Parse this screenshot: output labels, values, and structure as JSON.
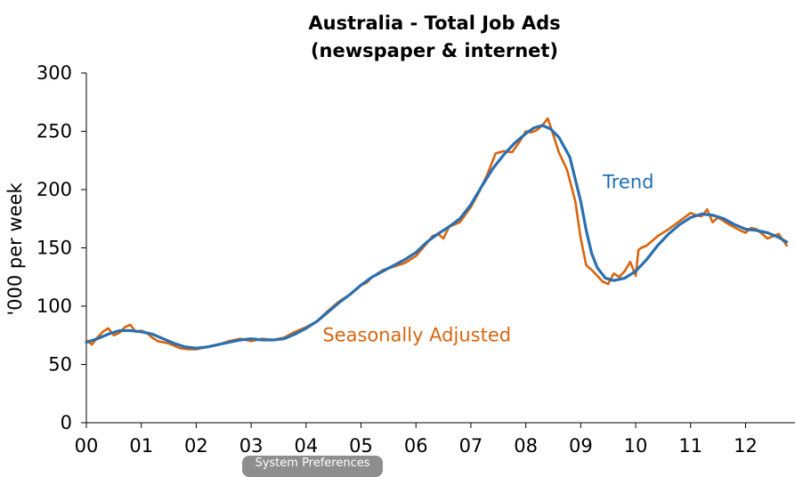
{
  "chart_data": {
    "type": "line",
    "title": [
      "Australia - Total Job Ads",
      "(newspaper & internet)"
    ],
    "ylabel": "'000 per week",
    "xlabel": "",
    "ylim": [
      0,
      300
    ],
    "xlim": [
      2000,
      2012.9
    ],
    "yticks": [
      0,
      50,
      100,
      150,
      200,
      250,
      300
    ],
    "xticks": [
      {
        "value": 2000,
        "label": "00"
      },
      {
        "value": 2001,
        "label": "01"
      },
      {
        "value": 2002,
        "label": "02"
      },
      {
        "value": 2003,
        "label": "03"
      },
      {
        "value": 2004,
        "label": "04"
      },
      {
        "value": 2005,
        "label": "05"
      },
      {
        "value": 2006,
        "label": "06"
      },
      {
        "value": 2007,
        "label": "07"
      },
      {
        "value": 2008,
        "label": "08"
      },
      {
        "value": 2009,
        "label": "09"
      },
      {
        "value": 2010,
        "label": "10"
      },
      {
        "value": 2011,
        "label": "11"
      },
      {
        "value": 2012,
        "label": "12"
      }
    ],
    "grid": false,
    "legend": "none",
    "annotations": [
      {
        "text": "Trend",
        "color": "#1f6fb2",
        "x": 2009.4,
        "y": 201
      },
      {
        "text": "Seasonally Adjusted",
        "color": "#d8650e",
        "x": 2004.3,
        "y": 70
      }
    ],
    "series": [
      {
        "color": "#d8650e",
        "x": [
          2000.0,
          2000.1,
          2000.2,
          2000.3,
          2000.4,
          2000.5,
          2000.6,
          2000.7,
          2000.8,
          2000.9,
          2001.0,
          2001.1,
          2001.2,
          2001.3,
          2001.5,
          2001.7,
          2001.85,
          2002.0,
          2002.2,
          2002.4,
          2002.6,
          2002.8,
          2003.0,
          2003.2,
          2003.4,
          2003.6,
          2003.8,
          2004.0,
          2004.2,
          2004.4,
          2004.6,
          2004.8,
          2005.0,
          2005.1,
          2005.2,
          2005.4,
          2005.6,
          2005.8,
          2006.0,
          2006.2,
          2006.3,
          2006.4,
          2006.5,
          2006.6,
          2006.8,
          2007.0,
          2007.15,
          2007.3,
          2007.45,
          2007.6,
          2007.75,
          2007.9,
          2008.0,
          2008.1,
          2008.2,
          2008.3,
          2008.4,
          2008.5,
          2008.6,
          2008.75,
          2008.9,
          2009.0,
          2009.1,
          2009.2,
          2009.3,
          2009.4,
          2009.5,
          2009.6,
          2009.7,
          2009.8,
          2009.9,
          2010.0,
          2010.05,
          2010.1,
          2010.2,
          2010.4,
          2010.6,
          2010.8,
          2011.0,
          2011.1,
          2011.2,
          2011.3,
          2011.4,
          2011.5,
          2011.7,
          2011.9,
          2012.0,
          2012.1,
          2012.2,
          2012.4,
          2012.6,
          2012.75
        ],
        "values": [
          71,
          67,
          73,
          78,
          81,
          75,
          77,
          82,
          84,
          78,
          79,
          77,
          73,
          70,
          68,
          64,
          63,
          63,
          65,
          67,
          70,
          72,
          70,
          72,
          71,
          73,
          78,
          82,
          87,
          96,
          104,
          110,
          118,
          120,
          125,
          131,
          134,
          137,
          143,
          154,
          160,
          162,
          158,
          168,
          172,
          185,
          198,
          213,
          231,
          233,
          232,
          242,
          250,
          249,
          251,
          255,
          261,
          247,
          232,
          217,
          190,
          158,
          135,
          131,
          126,
          121,
          119,
          128,
          125,
          130,
          138,
          126,
          148,
          150,
          152,
          160,
          166,
          173,
          180,
          178,
          177,
          183,
          172,
          176,
          170,
          165,
          163,
          167,
          166,
          158,
          162,
          152
        ]
      },
      {
        "color": "#2a6fb0",
        "x": [
          2000.0,
          2000.2,
          2000.4,
          2000.6,
          2000.8,
          2001.0,
          2001.2,
          2001.4,
          2001.6,
          2001.8,
          2002.0,
          2002.2,
          2002.4,
          2002.6,
          2002.8,
          2003.0,
          2003.2,
          2003.4,
          2003.6,
          2003.8,
          2004.0,
          2004.2,
          2004.4,
          2004.6,
          2004.8,
          2005.0,
          2005.2,
          2005.4,
          2005.6,
          2005.8,
          2006.0,
          2006.2,
          2006.4,
          2006.6,
          2006.8,
          2007.0,
          2007.2,
          2007.4,
          2007.6,
          2007.8,
          2008.0,
          2008.15,
          2008.3,
          2008.45,
          2008.6,
          2008.8,
          2009.0,
          2009.1,
          2009.2,
          2009.3,
          2009.45,
          2009.6,
          2009.8,
          2010.0,
          2010.2,
          2010.4,
          2010.6,
          2010.8,
          2011.0,
          2011.2,
          2011.4,
          2011.6,
          2011.8,
          2012.0,
          2012.2,
          2012.4,
          2012.6,
          2012.75
        ],
        "values": [
          69,
          72,
          76,
          79,
          79,
          78,
          76,
          72,
          68,
          65,
          64,
          65,
          67,
          69,
          71,
          72,
          71,
          71,
          72,
          76,
          81,
          87,
          95,
          103,
          110,
          118,
          125,
          130,
          135,
          140,
          146,
          155,
          162,
          168,
          175,
          187,
          203,
          218,
          230,
          240,
          248,
          253,
          255,
          252,
          245,
          228,
          190,
          165,
          145,
          133,
          124,
          122,
          124,
          130,
          140,
          152,
          162,
          170,
          176,
          179,
          178,
          175,
          170,
          166,
          165,
          163,
          159,
          155
        ]
      }
    ]
  },
  "overlay": {
    "tooltip_text": "System Preferences"
  }
}
